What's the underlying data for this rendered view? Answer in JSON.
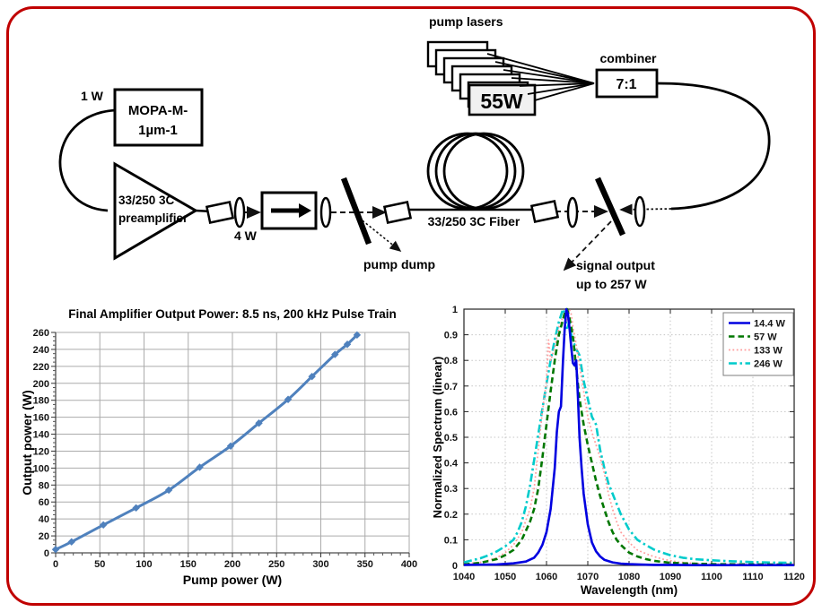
{
  "diagram": {
    "labels": {
      "pump_lasers": "pump lasers",
      "pump_unit_power": "55W",
      "combiner": "combiner",
      "combiner_ratio": "7:1",
      "seed_power": "1 W",
      "mopa_line1": "MOPA-M-",
      "mopa_line2": "1µm-1",
      "preamp_line1": "33/250 3C",
      "preamp_line2": "preamplifier",
      "preamp_output_power": "4 W",
      "pump_dump": "pump dump",
      "gain_fiber": "33/250 3C Fiber",
      "signal_output_line1": "signal output",
      "signal_output_line2": "up to 257 W"
    }
  },
  "chart_data": [
    {
      "type": "line",
      "title": "Final Amplifier Output Power: 8.5 ns, 200 kHz Pulse Train",
      "xlabel": "Pump power (W)",
      "ylabel": "Output power (W)",
      "xlim": [
        0,
        400
      ],
      "ylim": [
        0,
        260
      ],
      "xticks": [
        "0",
        "50",
        "100",
        "150",
        "200",
        "250",
        "300",
        "350",
        "400"
      ],
      "yticks": [
        "0",
        "20",
        "40",
        "60",
        "80",
        "100",
        "120",
        "140",
        "160",
        "180",
        "200",
        "220",
        "240",
        "260"
      ],
      "grid": "solid",
      "series": [
        {
          "name": "Output power",
          "color": "#4f81bd",
          "line_style": "solid",
          "width": 3,
          "marker": "diamond",
          "smooth": true,
          "x": [
            0,
            18,
            54,
            91,
            128,
            163,
            198,
            230,
            263,
            290,
            316,
            330,
            341
          ],
          "y": [
            4,
            13,
            33,
            53,
            74,
            101,
            126,
            153,
            181,
            208,
            234,
            246,
            257
          ]
        }
      ]
    },
    {
      "type": "line",
      "title": "",
      "xlabel": "Wavelength (nm)",
      "ylabel": "Normalized Spectrum (linear)",
      "xlim": [
        1040,
        1120
      ],
      "ylim": [
        0,
        1
      ],
      "xticks": [
        "1040",
        "1050",
        "1060",
        "1070",
        "1080",
        "1090",
        "1100",
        "1110",
        "1120"
      ],
      "yticks": [
        "0",
        "0.1",
        "0.2",
        "0.3",
        "0.4",
        "0.5",
        "0.6",
        "0.7",
        "0.8",
        "0.9",
        "1"
      ],
      "grid": "dotted",
      "legend": {
        "position": "top-right"
      },
      "series": [
        {
          "name": "14.4 W",
          "color": "#0000e0",
          "line_style": "solid",
          "width": 2.6,
          "x": [
            1040,
            1048,
            1052,
            1055,
            1057,
            1058,
            1059,
            1060,
            1061,
            1062,
            1062.5,
            1063,
            1063.5,
            1064,
            1064.4,
            1064.8,
            1065.2,
            1065.6,
            1066,
            1066.4,
            1066.8,
            1067.2,
            1067.6,
            1068,
            1068.5,
            1069,
            1069.5,
            1070,
            1071,
            1072,
            1073,
            1074,
            1076,
            1078,
            1080,
            1083,
            1086,
            1090,
            1095,
            1100,
            1110,
            1120
          ],
          "y": [
            0.002,
            0.004,
            0.008,
            0.015,
            0.03,
            0.05,
            0.08,
            0.13,
            0.22,
            0.38,
            0.52,
            0.6,
            0.62,
            0.8,
            0.92,
            1.0,
            0.98,
            0.92,
            0.85,
            0.79,
            0.78,
            0.8,
            0.66,
            0.5,
            0.38,
            0.28,
            0.22,
            0.16,
            0.09,
            0.055,
            0.035,
            0.022,
            0.012,
            0.007,
            0.005,
            0.003,
            0.002,
            0.002,
            0.001,
            0.001,
            0.001,
            0.001
          ]
        },
        {
          "name": "57 W",
          "color": "#007700",
          "line_style": "dashed",
          "width": 2.6,
          "x": [
            1040,
            1044,
            1048,
            1050,
            1052,
            1054,
            1056,
            1057,
            1058,
            1059,
            1060,
            1061,
            1062,
            1063,
            1064,
            1064.5,
            1065,
            1065.5,
            1066,
            1066.5,
            1067,
            1068,
            1069,
            1070,
            1071,
            1072,
            1073,
            1074,
            1075,
            1076,
            1077,
            1078,
            1080,
            1082,
            1084,
            1086,
            1090,
            1095,
            1100,
            1110,
            1120
          ],
          "y": [
            0.004,
            0.01,
            0.025,
            0.04,
            0.06,
            0.1,
            0.17,
            0.22,
            0.3,
            0.42,
            0.55,
            0.68,
            0.8,
            0.9,
            0.96,
            0.99,
            1.0,
            0.97,
            0.93,
            0.88,
            0.8,
            0.65,
            0.55,
            0.47,
            0.4,
            0.33,
            0.27,
            0.22,
            0.17,
            0.13,
            0.1,
            0.08,
            0.05,
            0.035,
            0.025,
            0.018,
            0.01,
            0.007,
            0.005,
            0.004,
            0.003
          ]
        },
        {
          "name": "133 W",
          "color": "#ff9c9c",
          "line_style": "dotted",
          "width": 1.7,
          "x": [
            1040,
            1044,
            1046,
            1048,
            1050,
            1052,
            1054,
            1056,
            1057,
            1058,
            1059,
            1060,
            1060.5,
            1061,
            1062,
            1063,
            1064,
            1065,
            1065.5,
            1066,
            1066.5,
            1067,
            1068,
            1069,
            1070,
            1071,
            1072,
            1073,
            1074,
            1075,
            1076,
            1077,
            1078,
            1080,
            1082,
            1085,
            1088,
            1092,
            1096,
            1100,
            1110,
            1120
          ],
          "y": [
            0.006,
            0.012,
            0.02,
            0.03,
            0.05,
            0.08,
            0.13,
            0.22,
            0.3,
            0.45,
            0.6,
            0.72,
            0.88,
            0.8,
            0.85,
            0.93,
            0.97,
            0.95,
            1.0,
            0.98,
            0.92,
            0.88,
            0.78,
            0.68,
            0.58,
            0.52,
            0.47,
            0.42,
            0.36,
            0.28,
            0.22,
            0.17,
            0.13,
            0.09,
            0.06,
            0.04,
            0.025,
            0.013,
            0.008,
            0.006,
            0.005,
            0.004
          ]
        },
        {
          "name": "246 W",
          "color": "#00cbcb",
          "line_style": "dash-dot",
          "width": 2.6,
          "x": [
            1040,
            1042,
            1044,
            1046,
            1048,
            1050,
            1052,
            1053,
            1054,
            1055,
            1056,
            1057,
            1058,
            1059,
            1060,
            1061,
            1062,
            1063,
            1064,
            1064.5,
            1065,
            1065.5,
            1066,
            1067,
            1068,
            1069,
            1070,
            1071,
            1072,
            1073,
            1074,
            1075,
            1076,
            1077,
            1078,
            1079,
            1080,
            1082,
            1084,
            1086,
            1088,
            1090,
            1093,
            1096,
            1100,
            1105,
            1110,
            1115,
            1120
          ],
          "y": [
            0.012,
            0.02,
            0.028,
            0.04,
            0.055,
            0.075,
            0.1,
            0.13,
            0.17,
            0.23,
            0.31,
            0.41,
            0.51,
            0.61,
            0.71,
            0.8,
            0.88,
            0.95,
            1.0,
            0.97,
            0.92,
            0.95,
            0.9,
            0.85,
            0.82,
            0.72,
            0.65,
            0.58,
            0.55,
            0.45,
            0.38,
            0.32,
            0.28,
            0.24,
            0.2,
            0.17,
            0.14,
            0.1,
            0.08,
            0.062,
            0.05,
            0.04,
            0.03,
            0.024,
            0.02,
            0.016,
            0.013,
            0.011,
            0.01
          ]
        }
      ]
    }
  ]
}
